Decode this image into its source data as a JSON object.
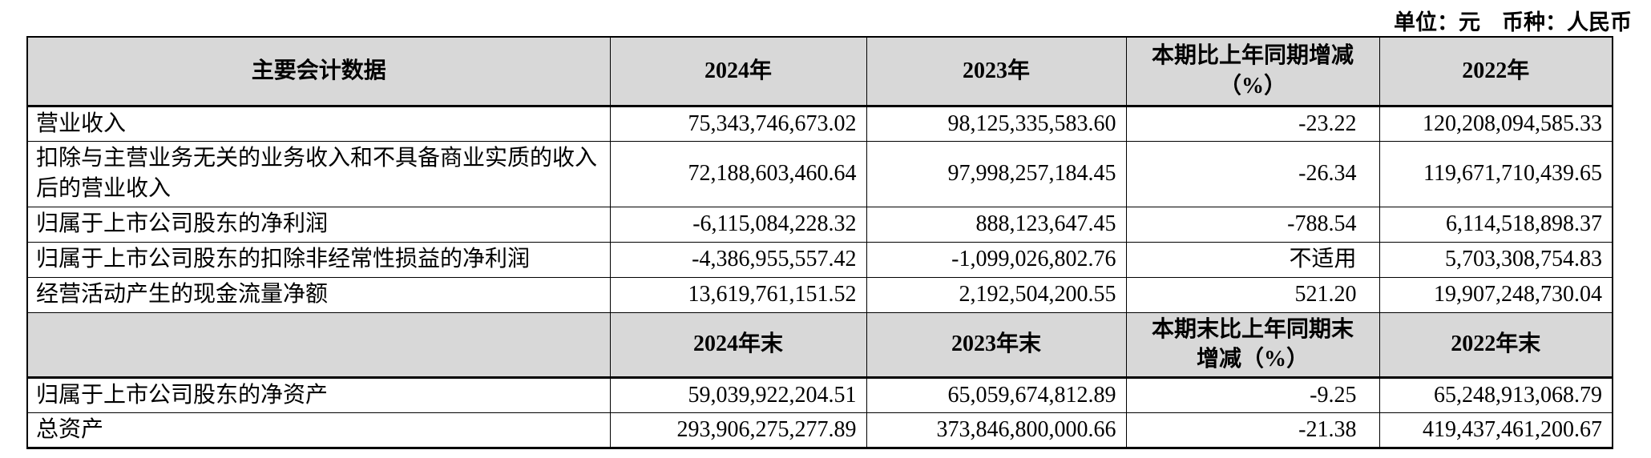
{
  "page": {
    "unit_note": "单位：元　币种：人民币"
  },
  "table": {
    "header1": {
      "metric": "主要会计数据",
      "y2024": "2024年",
      "y2023": "2023年",
      "change": "本期比上年同期增减\n（%）",
      "y2022": "2022年"
    },
    "section1": [
      {
        "label": "营业收入",
        "v2024": "75,343,746,673.02",
        "v2023": "98,125,335,583.60",
        "change": "-23.22",
        "v2022": "120,208,094,585.33"
      },
      {
        "label": "扣除与主营业务无关的业务收入和不具备商业实质的收入后的营业收入",
        "v2024": "72,188,603,460.64",
        "v2023": "97,998,257,184.45",
        "change": "-26.34",
        "v2022": "119,671,710,439.65"
      },
      {
        "label": "归属于上市公司股东的净利润",
        "v2024": "-6,115,084,228.32",
        "v2023": "888,123,647.45",
        "change": "-788.54",
        "v2022": "6,114,518,898.37"
      },
      {
        "label": "归属于上市公司股东的扣除非经常性损益的净利润",
        "v2024": "-4,386,955,557.42",
        "v2023": "-1,099,026,802.76",
        "change": "不适用",
        "v2022": "5,703,308,754.83"
      },
      {
        "label": "经营活动产生的现金流量净额",
        "v2024": "13,619,761,151.52",
        "v2023": "2,192,504,200.55",
        "change": "521.20",
        "v2022": "19,907,248,730.04"
      }
    ],
    "header2": {
      "metric": "",
      "y2024": "2024年末",
      "y2023": "2023年末",
      "change": "本期末比上年同期末\n增减（%）",
      "y2022": "2022年末"
    },
    "section2": [
      {
        "label": "归属于上市公司股东的净资产",
        "v2024": "59,039,922,204.51",
        "v2023": "65,059,674,812.89",
        "change": "-9.25",
        "v2022": "65,248,913,068.79"
      },
      {
        "label": "总资产",
        "v2024": "293,906,275,277.89",
        "v2023": "373,846,800,000.66",
        "change": "-21.38",
        "v2022": "419,437,461,200.67"
      }
    ]
  }
}
